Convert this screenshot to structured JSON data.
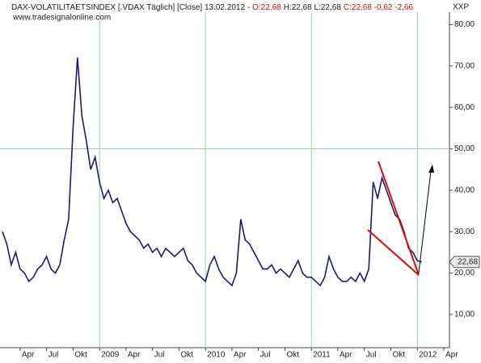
{
  "chart_data": {
    "type": "line",
    "title": "DAX-VOLATILITAETSINDEX [.VDAX  Täglich] [Close] 13.02.2012 -",
    "open_label": "O:22,68",
    "high_low_label": "H:22,68 L:22,68",
    "close_label": "C:22,68 -0,62 -2,66",
    "subtitle": "www.tradesignalonline.com",
    "y_axis_label": "XXP",
    "categories": [
      null,
      null,
      null,
      null,
      "Apr",
      null,
      null,
      null,
      null,
      null,
      "Jul",
      null,
      null,
      null,
      null,
      null,
      "Okt",
      null,
      null,
      null,
      null,
      null,
      "2009",
      null,
      null,
      null,
      null,
      null,
      "Apr",
      null,
      null,
      null,
      null,
      null,
      "Jul",
      null,
      null,
      null,
      null,
      null,
      "Okt",
      null,
      null,
      null,
      null,
      null,
      "2010",
      null,
      null,
      null,
      null,
      null,
      "Apr",
      null,
      null,
      null,
      null,
      null,
      "Jul",
      null,
      null,
      null,
      null,
      null,
      "Okt",
      null,
      null,
      null,
      null,
      null,
      "2011",
      null,
      null,
      null,
      null,
      null,
      "Apr",
      null,
      null,
      null,
      null,
      null,
      "Jul",
      null,
      null,
      null,
      null,
      null,
      "Okt",
      null,
      null,
      null,
      null,
      null,
      "2012",
      null,
      null,
      null,
      null,
      null,
      "Apr"
    ],
    "series": [
      {
        "name": "VDAX",
        "color": "#1c1c6b",
        "values": [
          30,
          27,
          22,
          25,
          21,
          20,
          18,
          19,
          21,
          22,
          24,
          21,
          20,
          22,
          28,
          33,
          55,
          72,
          58,
          52,
          45,
          48,
          42,
          38,
          40,
          37,
          38,
          35,
          32,
          30,
          29,
          28,
          26,
          27,
          25,
          26,
          24,
          26,
          25,
          24,
          25,
          26,
          23,
          22,
          20,
          19,
          18,
          22,
          24,
          21,
          19,
          18,
          17,
          20,
          33,
          28,
          27,
          25,
          23,
          21,
          21,
          22,
          20,
          21,
          20,
          19,
          21,
          23,
          20,
          19,
          19,
          18,
          17,
          19,
          24,
          21,
          19,
          18,
          18,
          19,
          18,
          20,
          18,
          21,
          42,
          38,
          43,
          40,
          37,
          34,
          33,
          30,
          26,
          25,
          23,
          22.68,
          null,
          null,
          null,
          null,
          null
        ]
      }
    ],
    "last_value": {
      "value": 22.68,
      "label": "22,68"
    },
    "ylim": [
      2,
      83
    ],
    "yticks": [
      {
        "value": 10,
        "label": "10,00"
      },
      {
        "value": 20,
        "label": "20,00"
      },
      {
        "value": 30,
        "label": "30,00"
      },
      {
        "value": 40,
        "label": "40,00"
      },
      {
        "value": 50,
        "label": "50,00"
      },
      {
        "value": 60,
        "label": "60,00"
      },
      {
        "value": 70,
        "label": "70,00"
      },
      {
        "value": 80,
        "label": "80,00"
      }
    ],
    "highlight_yticks": [
      50
    ],
    "trendline_color": "#d01010"
  }
}
